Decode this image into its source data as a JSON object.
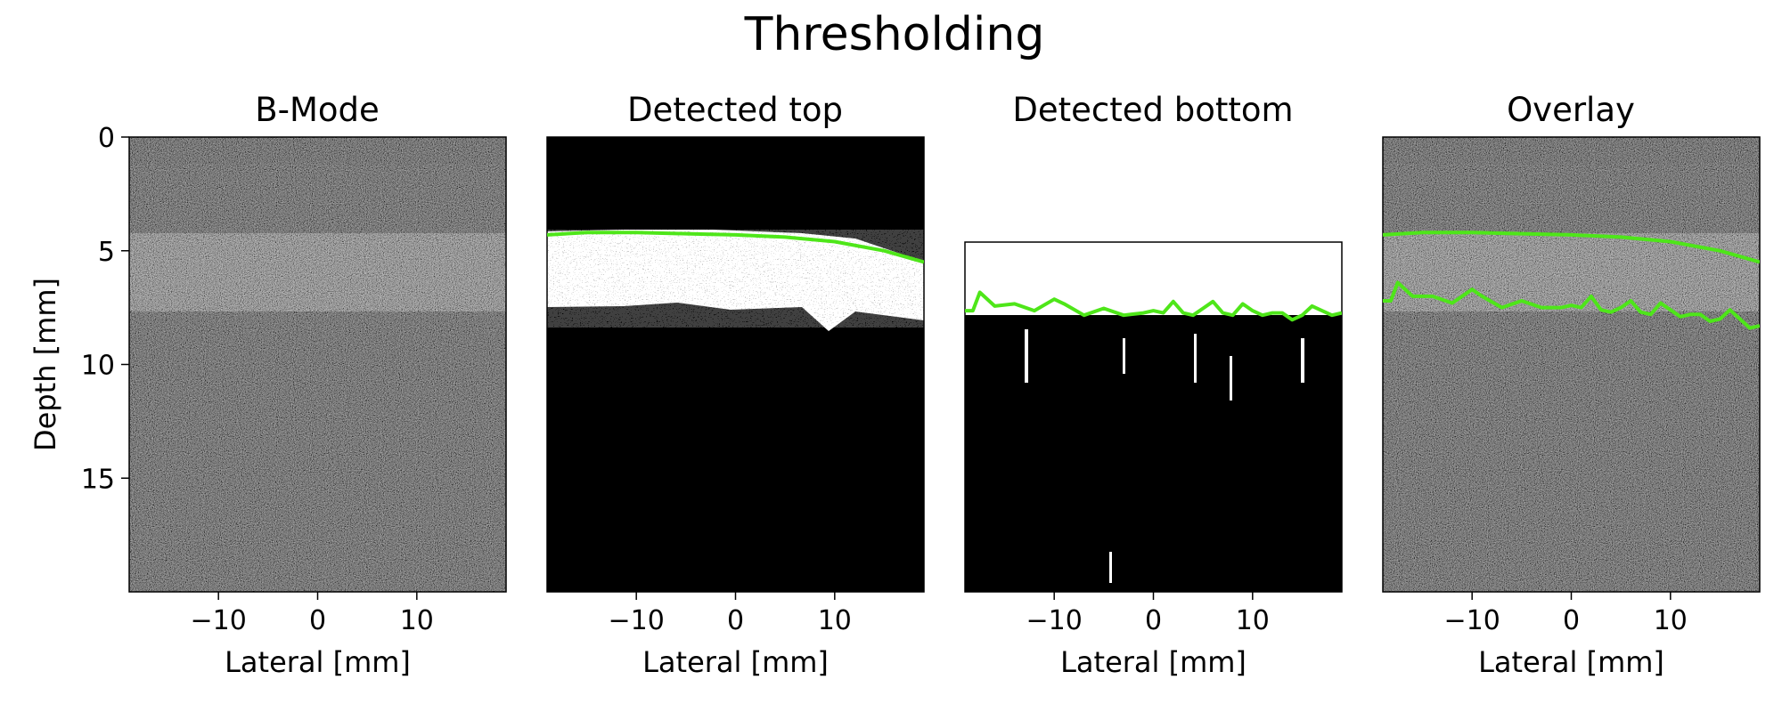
{
  "figure": {
    "title": "Thresholding"
  },
  "chart_data": [
    {
      "type": "heatmap",
      "title": "B-Mode",
      "xlabel": "Lateral [mm]",
      "ylabel": "Depth [mm]",
      "xlim": [
        -19,
        19
      ],
      "ylim": [
        0,
        20
      ],
      "y_inverted": true,
      "xticks": [
        -10,
        0,
        10
      ],
      "yticks": [
        0,
        5,
        10,
        15
      ],
      "image": "grayscale ultrasound speckle",
      "colormap": "gray",
      "grid": false
    },
    {
      "type": "heatmap",
      "title": "Detected top",
      "xlabel": "Lateral [mm]",
      "ylabel": "",
      "xlim": [
        -19,
        19
      ],
      "ylim": [
        0,
        20
      ],
      "y_inverted": true,
      "xticks": [
        -10,
        0,
        10
      ],
      "yticks": [],
      "image": "binary threshold mask",
      "colormap": "binary",
      "overlay_color": "#4ee619",
      "grid": false,
      "series": [
        {
          "x": [
            -19,
            -15,
            -10,
            -5,
            0,
            5,
            10,
            15,
            19
          ],
          "y": [
            4.3,
            4.2,
            4.2,
            4.25,
            4.3,
            4.4,
            4.6,
            5.0,
            5.5
          ]
        }
      ]
    },
    {
      "type": "heatmap",
      "title": "Detected bottom",
      "xlabel": "Lateral [mm]",
      "ylabel": "",
      "xlim": [
        -19,
        19
      ],
      "ylim": [
        4.7,
        20
      ],
      "y_inverted": true,
      "xticks": [
        -10,
        0,
        10
      ],
      "yticks": [],
      "image": "binary threshold mask",
      "colormap": "binary",
      "overlay_color": "#4ee619",
      "grid": false,
      "series": [
        {
          "x": [
            -19,
            -18.2,
            -17.5,
            -16,
            -14,
            -12,
            -10,
            -9,
            -7,
            -5,
            -3,
            -1,
            0,
            1,
            2,
            3,
            4,
            5,
            6,
            7,
            8,
            9,
            10,
            11,
            12,
            13,
            14,
            15,
            16,
            17,
            18,
            19
          ],
          "y": [
            7.7,
            7.7,
            6.9,
            7.5,
            7.4,
            7.7,
            7.2,
            7.4,
            7.9,
            7.6,
            7.9,
            7.8,
            7.7,
            7.8,
            7.3,
            7.8,
            7.9,
            7.6,
            7.3,
            7.8,
            7.9,
            7.4,
            7.7,
            7.9,
            7.8,
            7.8,
            8.1,
            7.9,
            7.5,
            7.7,
            7.9,
            7.8
          ]
        }
      ]
    },
    {
      "type": "heatmap",
      "title": "Overlay",
      "xlabel": "Lateral [mm]",
      "ylabel": "",
      "xlim": [
        -19,
        19
      ],
      "ylim": [
        0,
        20
      ],
      "y_inverted": true,
      "xticks": [
        -10,
        0,
        10
      ],
      "yticks": [],
      "image": "grayscale ultrasound speckle",
      "colormap": "gray",
      "overlay_color": "#4ee619",
      "grid": false,
      "series": [
        {
          "x": [
            -19,
            -15,
            -10,
            -5,
            0,
            5,
            10,
            15,
            19
          ],
          "y": [
            4.3,
            4.2,
            4.2,
            4.25,
            4.3,
            4.4,
            4.6,
            5.0,
            5.5
          ]
        },
        {
          "x": [
            -19,
            -18.2,
            -17.5,
            -16,
            -14,
            -12,
            -10,
            -9,
            -7,
            -5,
            -3,
            -1,
            0,
            1,
            2,
            3,
            4,
            5,
            6,
            7,
            8,
            9,
            10,
            11,
            12,
            13,
            14,
            15,
            16,
            17,
            18,
            19
          ],
          "y": [
            7.2,
            7.2,
            6.4,
            7.0,
            7.0,
            7.3,
            6.7,
            7.0,
            7.5,
            7.2,
            7.5,
            7.5,
            7.4,
            7.5,
            7.0,
            7.6,
            7.7,
            7.5,
            7.2,
            7.7,
            7.8,
            7.3,
            7.6,
            7.9,
            7.8,
            7.8,
            8.1,
            8.0,
            7.6,
            8.0,
            8.4,
            8.3
          ]
        }
      ]
    }
  ]
}
